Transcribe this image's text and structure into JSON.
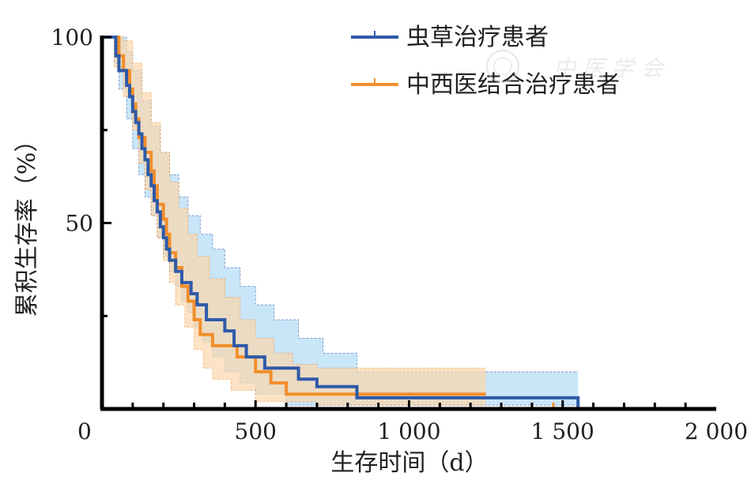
{
  "chart_data": {
    "type": "line",
    "subtype": "kaplan-meier",
    "title": "",
    "xlabel": "生存时间（d）",
    "ylabel": "累积生存率（%）",
    "xlim": [
      0,
      2000
    ],
    "ylim": [
      0,
      100
    ],
    "x_ticks": [
      {
        "value": 0,
        "label": "0"
      },
      {
        "value": 500,
        "label": "500"
      },
      {
        "value": 1000,
        "label": "1 000"
      },
      {
        "value": 1500,
        "label": "1 500"
      },
      {
        "value": 2000,
        "label": "2 000"
      }
    ],
    "y_ticks": [
      {
        "value": 50,
        "label": "50"
      },
      {
        "value": 100,
        "label": "100"
      }
    ],
    "grid": false,
    "legend_position": "top-right",
    "series": [
      {
        "name": "虫草治疗患者",
        "color": "#2e5aa8",
        "band_color": "#bfe0f7",
        "steps": [
          [
            0,
            100
          ],
          [
            40,
            100
          ],
          [
            45,
            95
          ],
          [
            55,
            91
          ],
          [
            80,
            87
          ],
          [
            90,
            84
          ],
          [
            100,
            80
          ],
          [
            110,
            77
          ],
          [
            120,
            74
          ],
          [
            130,
            70
          ],
          [
            140,
            67
          ],
          [
            150,
            63
          ],
          [
            160,
            60
          ],
          [
            170,
            56
          ],
          [
            180,
            53
          ],
          [
            190,
            49
          ],
          [
            200,
            46
          ],
          [
            210,
            43
          ],
          [
            220,
            40
          ],
          [
            240,
            37
          ],
          [
            260,
            34
          ],
          [
            290,
            31
          ],
          [
            310,
            28
          ],
          [
            340,
            24
          ],
          [
            400,
            21
          ],
          [
            430,
            17
          ],
          [
            470,
            14
          ],
          [
            530,
            11
          ],
          [
            640,
            8
          ],
          [
            700,
            6
          ],
          [
            830,
            3
          ],
          [
            1550,
            0
          ]
        ],
        "ci_upper": [
          [
            0,
            100
          ],
          [
            40,
            100
          ],
          [
            55,
            100
          ],
          [
            80,
            96
          ],
          [
            100,
            91
          ],
          [
            130,
            83
          ],
          [
            160,
            76
          ],
          [
            190,
            69
          ],
          [
            220,
            63
          ],
          [
            250,
            57
          ],
          [
            280,
            52
          ],
          [
            320,
            47
          ],
          [
            360,
            43
          ],
          [
            400,
            38
          ],
          [
            450,
            33
          ],
          [
            500,
            28
          ],
          [
            560,
            24
          ],
          [
            640,
            19
          ],
          [
            720,
            15
          ],
          [
            830,
            10
          ],
          [
            1550,
            10
          ]
        ],
        "ci_lower": [
          [
            0,
            100
          ],
          [
            40,
            93
          ],
          [
            55,
            86
          ],
          [
            80,
            78
          ],
          [
            100,
            70
          ],
          [
            120,
            63
          ],
          [
            140,
            57
          ],
          [
            160,
            52
          ],
          [
            180,
            46
          ],
          [
            200,
            41
          ],
          [
            220,
            37
          ],
          [
            240,
            33
          ],
          [
            260,
            29
          ],
          [
            280,
            26
          ],
          [
            300,
            22
          ],
          [
            330,
            18
          ],
          [
            360,
            14
          ],
          [
            400,
            10
          ],
          [
            450,
            7
          ],
          [
            500,
            4
          ],
          [
            600,
            1
          ],
          [
            1550,
            0
          ]
        ]
      },
      {
        "name": "中西医结合治疗患者",
        "color": "#f28e2b",
        "band_color": "#fbd7ad",
        "steps": [
          [
            0,
            100
          ],
          [
            40,
            100
          ],
          [
            55,
            95
          ],
          [
            70,
            91
          ],
          [
            90,
            86
          ],
          [
            100,
            82
          ],
          [
            110,
            78
          ],
          [
            120,
            73
          ],
          [
            140,
            69
          ],
          [
            160,
            64
          ],
          [
            170,
            60
          ],
          [
            180,
            55
          ],
          [
            200,
            51
          ],
          [
            210,
            47
          ],
          [
            220,
            42
          ],
          [
            240,
            38
          ],
          [
            260,
            33
          ],
          [
            280,
            29
          ],
          [
            300,
            24
          ],
          [
            320,
            20
          ],
          [
            360,
            17
          ],
          [
            440,
            14
          ],
          [
            500,
            10
          ],
          [
            550,
            7
          ],
          [
            600,
            4
          ],
          [
            700,
            4
          ],
          [
            1250,
            4
          ]
        ],
        "ci_upper": [
          [
            0,
            100
          ],
          [
            40,
            100
          ],
          [
            70,
            99
          ],
          [
            100,
            93
          ],
          [
            130,
            85
          ],
          [
            160,
            77
          ],
          [
            190,
            69
          ],
          [
            220,
            61
          ],
          [
            250,
            54
          ],
          [
            280,
            47
          ],
          [
            310,
            41
          ],
          [
            350,
            35
          ],
          [
            400,
            30
          ],
          [
            450,
            24
          ],
          [
            500,
            19
          ],
          [
            560,
            15
          ],
          [
            620,
            12
          ],
          [
            700,
            11
          ],
          [
            1250,
            11
          ]
        ],
        "ci_lower": [
          [
            0,
            100
          ],
          [
            40,
            92
          ],
          [
            70,
            84
          ],
          [
            100,
            75
          ],
          [
            120,
            66
          ],
          [
            140,
            59
          ],
          [
            160,
            52
          ],
          [
            180,
            46
          ],
          [
            200,
            40
          ],
          [
            220,
            34
          ],
          [
            240,
            28
          ],
          [
            270,
            22
          ],
          [
            300,
            16
          ],
          [
            330,
            11
          ],
          [
            360,
            8
          ],
          [
            420,
            5
          ],
          [
            500,
            2
          ],
          [
            700,
            1
          ],
          [
            1250,
            1
          ]
        ]
      }
    ],
    "censor_marks": [
      {
        "series": 1,
        "x": 1470,
        "y": 0
      }
    ]
  },
  "watermark": {
    "text": "中 医 学 会",
    "description": "faint seal watermark at top right"
  }
}
